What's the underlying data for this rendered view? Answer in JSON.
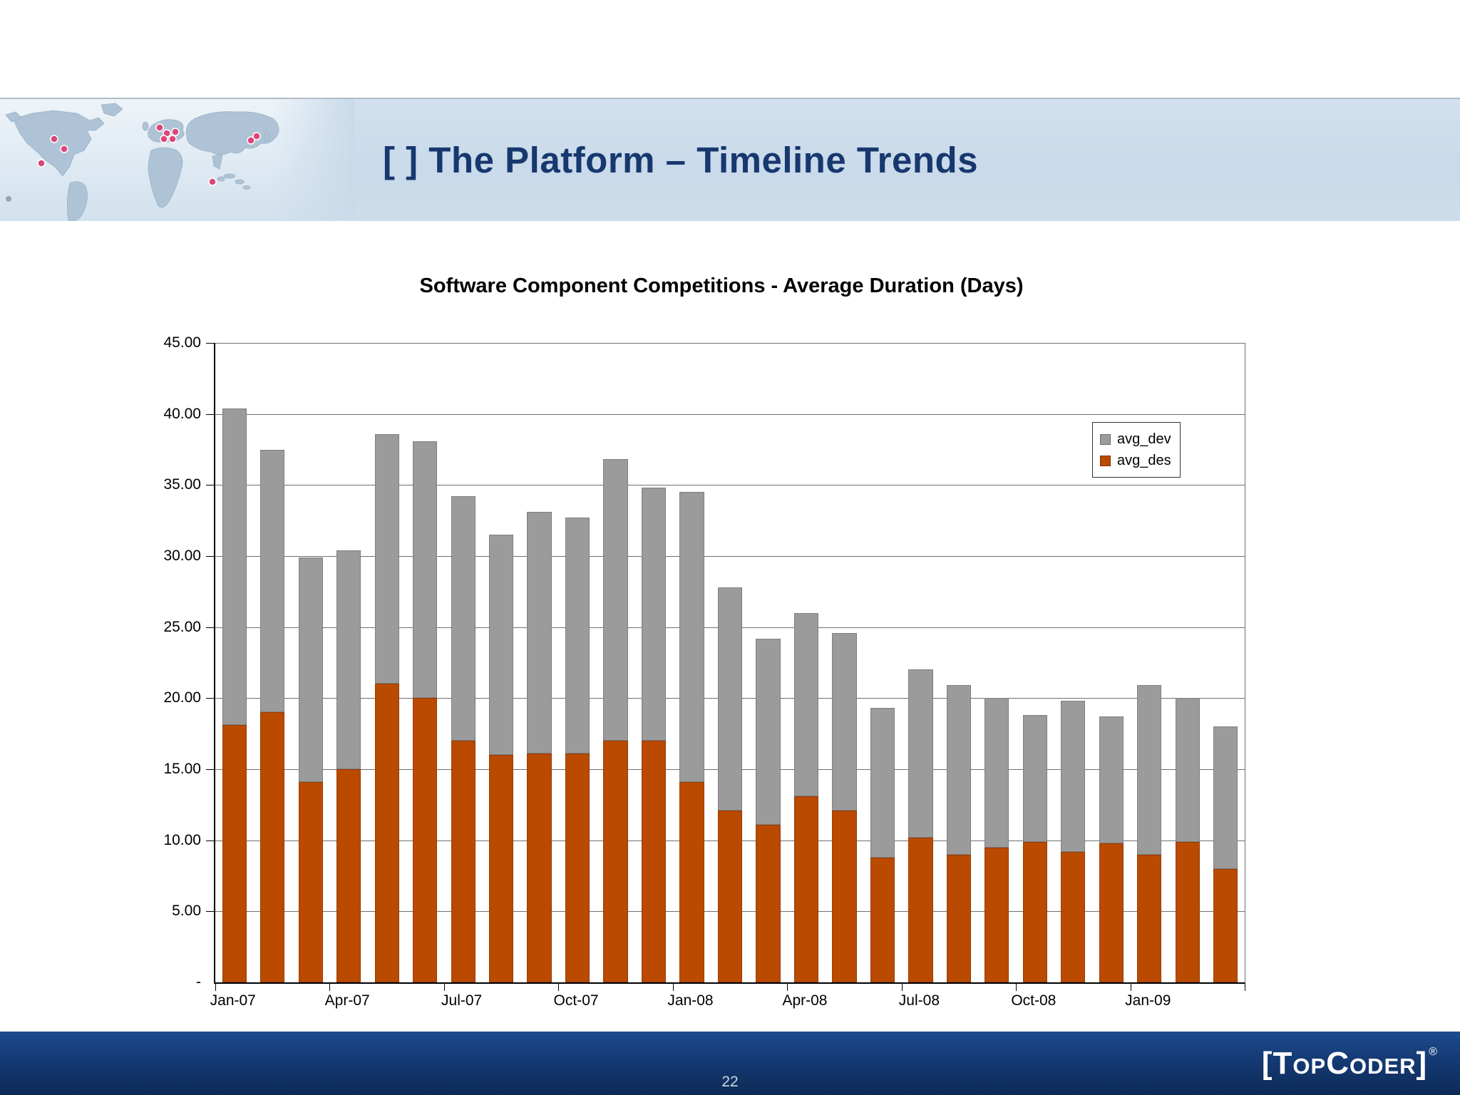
{
  "slide": {
    "title": "[ ] The Platform – Timeline Trends",
    "page_number": "22",
    "logo_text": "[TopCoder]",
    "logo_reg": "®"
  },
  "colors": {
    "header_band": "#c9daea",
    "title_text": "#17386e",
    "footer_bar": "#143a73",
    "avg_dev": "#9b9b9b",
    "avg_des": "#ba4a00"
  },
  "chart_data": {
    "type": "bar",
    "stacked": true,
    "title": "Software Component Competitions - Average Duration (Days)",
    "xlabel": "",
    "ylabel": "",
    "ylim": [
      0,
      45
    ],
    "grid_step": 5,
    "grid": true,
    "legend_position": "top-right-inside",
    "categories": [
      "Jan-07",
      "Feb-07",
      "Mar-07",
      "Apr-07",
      "May-07",
      "Jun-07",
      "Jul-07",
      "Aug-07",
      "Sep-07",
      "Oct-07",
      "Nov-07",
      "Dec-07",
      "Jan-08",
      "Feb-08",
      "Mar-08",
      "Apr-08",
      "May-08",
      "Jun-08",
      "Jul-08",
      "Aug-08",
      "Sep-08",
      "Oct-08",
      "Nov-08",
      "Dec-08",
      "Jan-09",
      "Feb-09",
      "Mar-09"
    ],
    "x_tick_labels": [
      "Jan-07",
      "Apr-07",
      "Jul-07",
      "Oct-07",
      "Jan-08",
      "Apr-08",
      "Jul-08",
      "Oct-08",
      "Jan-09"
    ],
    "x_tick_indices": [
      0,
      3,
      6,
      9,
      12,
      15,
      18,
      21,
      24
    ],
    "y_ticks": [
      "45.00",
      "40.00",
      "35.00",
      "30.00",
      "25.00",
      "20.00",
      "15.00",
      "10.00",
      "5.00",
      "-"
    ],
    "series": [
      {
        "name": "avg_des",
        "color": "#ba4a00",
        "values": [
          18.1,
          19.0,
          14.1,
          15.0,
          21.0,
          20.0,
          17.0,
          16.0,
          16.1,
          16.1,
          17.0,
          17.0,
          14.1,
          12.1,
          11.1,
          13.1,
          12.1,
          8.8,
          10.2,
          9.0,
          9.5,
          9.9,
          9.2,
          9.8,
          9.0,
          9.9,
          8.0
        ]
      },
      {
        "name": "avg_dev",
        "color": "#9b9b9b",
        "values": [
          22.3,
          18.5,
          15.8,
          15.4,
          17.6,
          18.1,
          17.2,
          15.5,
          17.0,
          16.6,
          19.8,
          17.8,
          20.4,
          15.7,
          13.1,
          12.9,
          12.5,
          10.5,
          11.8,
          11.9,
          10.5,
          8.9,
          10.6,
          8.9,
          11.9,
          10.1,
          10.0
        ]
      }
    ],
    "legend": [
      {
        "label": "avg_dev",
        "color": "#9b9b9b"
      },
      {
        "label": "avg_des",
        "color": "#ba4a00"
      }
    ]
  }
}
